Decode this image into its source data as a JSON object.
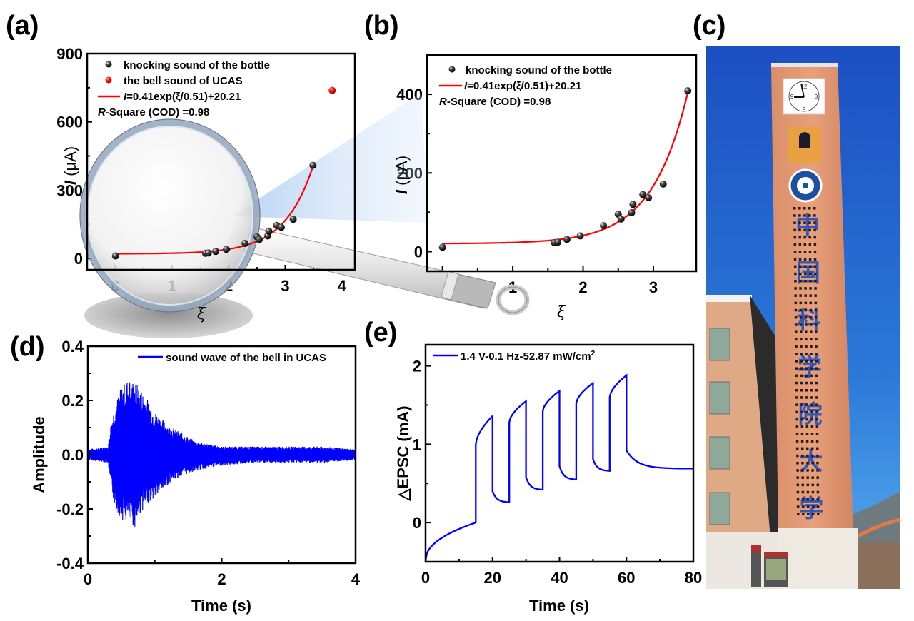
{
  "panel_labels": {
    "a": "(a)",
    "b": "(b)",
    "c": "(c)",
    "d": "(d)",
    "e": "(e)"
  },
  "colors": {
    "knock": "#111111",
    "bell": "#ff0000",
    "fit": "#ff0000",
    "wave": "#0000ff",
    "epsc": "#0000ff"
  },
  "chart_data": [
    {
      "id": "a",
      "type": "scatter",
      "title": "",
      "xlabel": "ξ",
      "ylabel_italic": "I",
      "ylabel_rest": " (μA)",
      "xlim": [
        -0.5,
        4.23
      ],
      "ylim": [
        -50,
        900
      ],
      "xticks": [
        0,
        1,
        2,
        3,
        4
      ],
      "xtick_labels": [
        "0",
        "1",
        "2",
        "3",
        "4"
      ],
      "yticks": [
        0,
        300,
        600,
        900
      ],
      "ytick_labels": [
        "0",
        "300",
        "600",
        "900"
      ],
      "legend_position": "top-left",
      "series": [
        {
          "name": "knocking sound of the bottle",
          "kind": "scatter",
          "color": "#111111",
          "x": [
            0.0,
            1.59,
            1.64,
            1.77,
            1.96,
            2.29,
            2.5,
            2.54,
            2.69,
            2.71,
            2.85,
            2.93,
            3.14,
            3.49
          ],
          "y": [
            11,
            23,
            24,
            31,
            40,
            66,
            95,
            83,
            99,
            120,
            145,
            137,
            172,
            409
          ]
        },
        {
          "name": "the bell sound of UCAS",
          "kind": "scatter",
          "color": "#ff0000",
          "x": [
            3.83
          ],
          "y": [
            738
          ]
        },
        {
          "name": "I=0.41exp(ξ/0.51)+20.21",
          "kind": "fit",
          "color": "#ff0000",
          "equation": {
            "A": 0.41,
            "t": 0.51,
            "y0": 20.21
          },
          "x_range": [
            0,
            3.49
          ]
        }
      ],
      "legend": {
        "items": [
          {
            "marker": "dot-black",
            "label": "knocking sound of the bottle"
          },
          {
            "marker": "dot-red",
            "label": "the bell sound of UCAS"
          },
          {
            "marker": "line-red",
            "label_italic": "I",
            "label_rest": "=0.41exp(ξ/0.51)+20.21"
          }
        ],
        "rsq_italic": "R",
        "rsq_rest": "-Square (COD) =0.98"
      }
    },
    {
      "id": "b",
      "type": "scatter",
      "title": "",
      "xlabel": "ξ",
      "ylabel_italic": "I",
      "ylabel_rest": " (μA)",
      "xlim": [
        -0.22,
        3.61
      ],
      "ylim": [
        -50,
        500
      ],
      "xticks": [
        0,
        1,
        2,
        3
      ],
      "xtick_labels": [
        "0",
        "1",
        "2",
        "3"
      ],
      "yticks": [
        0,
        200,
        400
      ],
      "ytick_labels": [
        "0",
        "200",
        "400"
      ],
      "legend_position": "top-left",
      "series": [
        {
          "name": "knocking sound of the bottle",
          "kind": "scatter",
          "color": "#111111",
          "x": [
            0.0,
            1.59,
            1.64,
            1.77,
            1.96,
            2.29,
            2.5,
            2.54,
            2.69,
            2.71,
            2.85,
            2.93,
            3.14,
            3.49
          ],
          "y": [
            11,
            23,
            24,
            31,
            40,
            66,
            95,
            83,
            99,
            120,
            145,
            137,
            172,
            409
          ]
        },
        {
          "name": "I=0.41exp(ξ/0.51)+20.21",
          "kind": "fit",
          "color": "#ff0000",
          "equation": {
            "A": 0.41,
            "t": 0.51,
            "y0": 20.21
          },
          "x_range": [
            0,
            3.49
          ]
        }
      ],
      "legend": {
        "items": [
          {
            "marker": "dot-black",
            "label": "knocking sound of the bottle"
          },
          {
            "marker": "line-red",
            "label_italic": "I",
            "label_rest": "=0.41exp(ξ/0.51)+20.21"
          }
        ],
        "rsq_italic": "R",
        "rsq_rest": "-Square (COD) =0.98"
      }
    },
    {
      "id": "d",
      "type": "line",
      "title": "",
      "xlabel": "Time (s)",
      "ylabel": "Amplitude",
      "xlim": [
        0,
        4
      ],
      "ylim": [
        -0.4,
        0.4
      ],
      "xticks": [
        0,
        2,
        4
      ],
      "xtick_labels": [
        "0",
        "2",
        "4"
      ],
      "yticks": [
        -0.4,
        -0.2,
        0.0,
        0.2,
        0.4
      ],
      "ytick_labels": [
        "-0.4",
        "-0.2",
        "0.0",
        "0.2",
        "0.4"
      ],
      "legend_position": "top-right",
      "series": [
        {
          "name": "sound wave of the bell in UCAS",
          "color": "#0000ff",
          "envelope_upper": {
            "t": [
              0,
              0.3,
              0.34,
              0.4,
              0.5,
              0.6,
              0.7,
              0.8,
              0.9,
              1.0,
              1.2,
              1.4,
              1.6,
              2.0,
              2.5,
              3.0,
              3.5,
              4.0
            ],
            "v": [
              0.02,
              0.03,
              0.11,
              0.18,
              0.25,
              0.28,
              0.27,
              0.24,
              0.2,
              0.16,
              0.11,
              0.08,
              0.05,
              0.03,
              0.03,
              0.03,
              0.03,
              0.02
            ]
          },
          "envelope_lower": {
            "t": [
              0,
              0.3,
              0.34,
              0.4,
              0.5,
              0.6,
              0.7,
              0.8,
              0.9,
              1.0,
              1.2,
              1.4,
              1.6,
              2.0,
              2.5,
              3.0,
              3.5,
              4.0
            ],
            "v": [
              -0.02,
              -0.03,
              -0.11,
              -0.19,
              -0.24,
              -0.25,
              -0.27,
              -0.21,
              -0.18,
              -0.16,
              -0.11,
              -0.08,
              -0.06,
              -0.04,
              -0.03,
              -0.03,
              -0.03,
              -0.02
            ]
          }
        }
      ],
      "legend": {
        "items": [
          {
            "marker": "line-blue",
            "label": "sound wave of the bell in UCAS"
          }
        ]
      }
    },
    {
      "id": "e",
      "type": "line",
      "title": "",
      "xlabel": "Time (s)",
      "ylabel": "△EPSC (mA)",
      "xlim": [
        0,
        80
      ],
      "ylim": [
        -0.5,
        2.27
      ],
      "xticks": [
        0,
        20,
        40,
        60,
        80
      ],
      "xtick_labels": [
        "0",
        "20",
        "40",
        "60",
        "80"
      ],
      "yticks": [
        0,
        1,
        2
      ],
      "ytick_labels": [
        "0",
        "1",
        "2"
      ],
      "legend_position": "top-left",
      "series": [
        {
          "name": "1.4 V-0.1 Hz-52.87 mW/cm2",
          "color": "#0000ff",
          "pulses": [
            {
              "on": 15,
              "off": 20,
              "base_before": 0.0,
              "jump": 1.0,
              "peak": 1.36,
              "drop": 0.4,
              "end": 0.26
            },
            {
              "on": 25,
              "off": 30,
              "jump": 1.28,
              "peak": 1.55,
              "drop": 0.58,
              "end": 0.42
            },
            {
              "on": 35,
              "off": 40,
              "jump": 1.42,
              "peak": 1.68,
              "drop": 0.72,
              "end": 0.55
            },
            {
              "on": 45,
              "off": 50,
              "jump": 1.52,
              "peak": 1.78,
              "drop": 0.81,
              "end": 0.66
            },
            {
              "on": 55,
              "off": 60,
              "jump": 1.6,
              "peak": 1.88,
              "drop": 0.92,
              "end": 0.69
            }
          ],
          "start": -0.49,
          "final_time": 80
        }
      ],
      "legend": {
        "items": [
          {
            "marker": "line-blue",
            "label": "1.4 V-0.1 Hz-52.87 mW/cm",
            "sup": "2"
          }
        ]
      }
    }
  ],
  "photo": {
    "subject": "UCAS clock tower",
    "clock_numerals": [
      "12",
      "3",
      "6",
      "9"
    ],
    "tower_characters": [
      "中",
      "国",
      "科",
      "学",
      "院",
      "大",
      "学"
    ]
  }
}
